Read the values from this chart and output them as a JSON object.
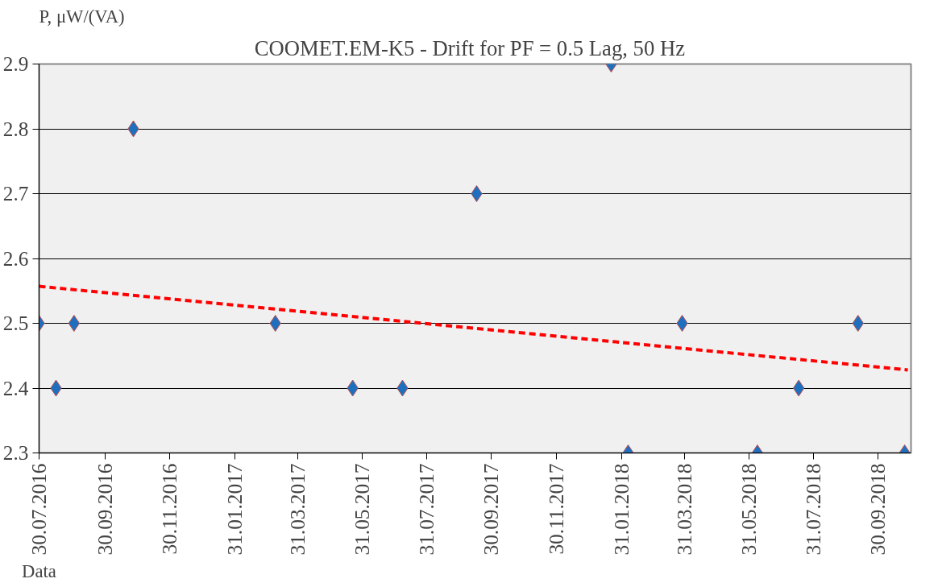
{
  "chart_data": {
    "type": "scatter",
    "title": "COOMET.EM-K5  - Drift for PF = 0.5 Lag,  50 Hz",
    "ylabel": "P, μW/(VA)",
    "xlabel": "Data",
    "x": [
      "2016-07-30",
      "2016-08-15",
      "2016-09-01",
      "2016-10-27",
      "2017-03-10",
      "2017-05-22",
      "2017-07-08",
      "2017-09-16",
      "2018-01-21",
      "2018-02-06",
      "2018-03-29",
      "2018-06-08",
      "2018-07-17",
      "2018-09-11",
      "2018-10-25"
    ],
    "series": [
      {
        "color": "#1f6fbf",
        "marker": "diamond",
        "values": [
          2.5,
          2.4,
          2.5,
          2.8,
          2.5,
          2.4,
          2.4,
          2.7,
          2.9,
          2.3,
          2.5,
          2.3,
          2.4,
          2.5,
          2.3
        ]
      },
      {
        "type": "line",
        "color": "#ff0000",
        "line_style": "dashed",
        "marker": "none",
        "x": [
          "2016-07-30",
          "2018-10-28"
        ],
        "values": [
          2.557,
          2.428
        ]
      }
    ],
    "ylim": [
      2.3,
      2.9
    ],
    "yticks": [
      2.3,
      2.4,
      2.5,
      2.6,
      2.7,
      2.8,
      2.9
    ],
    "xlim": [
      "2016-07-30",
      "2018-10-31"
    ],
    "xticks": [
      {
        "value": "2016-07-30",
        "label": "30.07.2016"
      },
      {
        "value": "2016-09-30",
        "label": "30.09.2016"
      },
      {
        "value": "2016-11-30",
        "label": "30.11.2016"
      },
      {
        "value": "2017-01-31",
        "label": "31.01.2017"
      },
      {
        "value": "2017-03-31",
        "label": "31.03.2017"
      },
      {
        "value": "2017-05-31",
        "label": "31.05.2017"
      },
      {
        "value": "2017-07-31",
        "label": "31.07.2017"
      },
      {
        "value": "2017-09-30",
        "label": "30.09.2017"
      },
      {
        "value": "2017-11-30",
        "label": "30.11.2017"
      },
      {
        "value": "2018-01-31",
        "label": "31.01.2018"
      },
      {
        "value": "2018-03-31",
        "label": "31.03.2018"
      },
      {
        "value": "2018-05-31",
        "label": "31.05.2018"
      },
      {
        "value": "2018-07-31",
        "label": "31.07.2018"
      },
      {
        "value": "2018-09-30",
        "label": "30.09.2018"
      }
    ],
    "grid": "y"
  }
}
